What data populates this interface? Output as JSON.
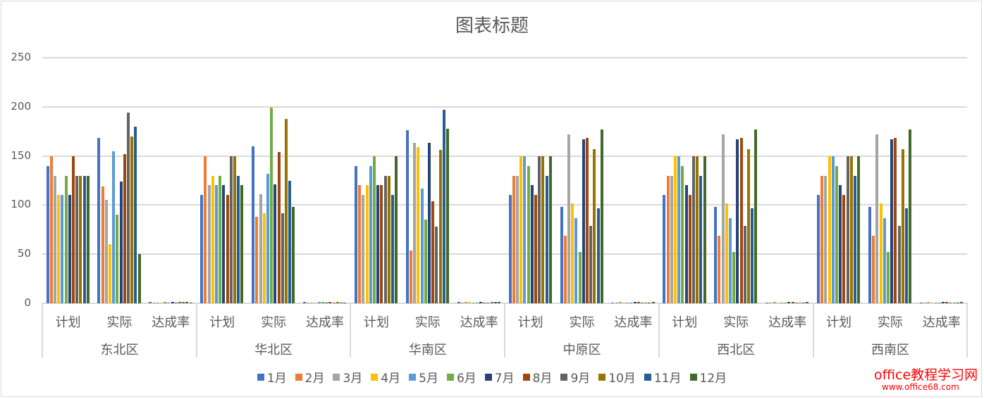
{
  "chart_data": {
    "type": "bar",
    "title": "图表标题",
    "xlabel": "",
    "ylabel": "",
    "ylim": [
      0,
      250
    ],
    "yticks": [
      0,
      50,
      100,
      150,
      200,
      250
    ],
    "grid": true,
    "legend_position": "bottom",
    "regions": [
      "东北区",
      "华北区",
      "华南区",
      "中原区",
      "西北区",
      "西南区"
    ],
    "subcategories": [
      "计划",
      "实际",
      "达成率"
    ],
    "series": [
      {
        "name": "1月",
        "color": "#4472C4"
      },
      {
        "name": "2月",
        "color": "#ED7D31"
      },
      {
        "name": "3月",
        "color": "#A5A5A5"
      },
      {
        "name": "4月",
        "color": "#FFC000"
      },
      {
        "name": "5月",
        "color": "#5B9BD5"
      },
      {
        "name": "6月",
        "color": "#70AD47"
      },
      {
        "name": "7月",
        "color": "#264478"
      },
      {
        "name": "8月",
        "color": "#9E480E"
      },
      {
        "name": "9月",
        "color": "#636363"
      },
      {
        "name": "10月",
        "color": "#997300"
      },
      {
        "name": "11月",
        "color": "#255E91"
      },
      {
        "name": "12月",
        "color": "#43682B"
      }
    ],
    "data": {
      "东北区": {
        "计划": [
          140,
          150,
          130,
          110,
          110,
          130,
          110,
          150,
          130,
          130,
          130,
          130
        ],
        "实际": [
          168,
          119,
          105,
          60,
          155,
          90,
          124,
          152,
          194,
          170,
          180,
          50
        ],
        "达成率": [
          1.2,
          0.79,
          0.81,
          0.55,
          1.41,
          0.69,
          1.13,
          1.01,
          1.49,
          1.31,
          1.38,
          0.38
        ]
      },
      "华北区": {
        "计划": [
          110,
          150,
          120,
          130,
          120,
          130,
          120,
          110,
          150,
          150,
          130,
          120
        ],
        "实际": [
          160,
          88,
          111,
          92,
          132,
          199,
          121,
          154,
          92,
          188,
          125,
          98
        ],
        "达成率": [
          1.45,
          0.59,
          0.93,
          0.71,
          1.1,
          1.53,
          1.01,
          1.4,
          0.61,
          1.25,
          0.96,
          0.82
        ]
      },
      "华南区": {
        "计划": [
          140,
          120,
          110,
          120,
          140,
          150,
          120,
          120,
          130,
          130,
          110,
          150
        ],
        "实际": [
          176,
          54,
          163,
          159,
          117,
          85,
          163,
          104,
          78,
          156,
          197,
          178
        ],
        "达成率": [
          1.26,
          0.45,
          1.48,
          1.33,
          0.84,
          0.57,
          1.36,
          0.87,
          0.6,
          1.2,
          1.79,
          1.19
        ]
      },
      "中原区": {
        "计划": [
          110,
          130,
          130,
          150,
          150,
          140,
          120,
          110,
          150,
          150,
          130,
          150
        ],
        "实际": [
          98,
          69,
          172,
          102,
          87,
          52,
          167,
          168,
          79,
          157,
          97,
          177
        ],
        "达成率": [
          0.89,
          0.53,
          1.32,
          0.68,
          0.58,
          0.37,
          1.39,
          1.53,
          0.53,
          1.05,
          0.75,
          1.18
        ]
      },
      "西北区": {
        "计划": [
          110,
          130,
          130,
          150,
          150,
          140,
          120,
          110,
          150,
          150,
          130,
          150
        ],
        "实际": [
          98,
          69,
          172,
          102,
          87,
          52,
          167,
          168,
          79,
          157,
          97,
          177
        ],
        "达成率": [
          0.89,
          0.53,
          1.32,
          0.68,
          0.58,
          0.37,
          1.39,
          1.53,
          0.53,
          1.05,
          0.75,
          1.18
        ]
      },
      "西南区": {
        "计划": [
          110,
          130,
          130,
          150,
          150,
          140,
          120,
          110,
          150,
          150,
          130,
          150
        ],
        "实际": [
          98,
          69,
          172,
          102,
          87,
          52,
          167,
          168,
          79,
          157,
          97,
          177
        ],
        "达成率": [
          0.89,
          0.53,
          1.32,
          0.68,
          0.58,
          0.37,
          1.39,
          1.53,
          0.53,
          1.05,
          0.75,
          1.18
        ]
      }
    }
  },
  "watermark": {
    "line1": "office教程学习网",
    "line2": "www.office68.com"
  }
}
